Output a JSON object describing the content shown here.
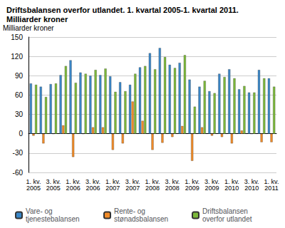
{
  "chart_data": {
    "type": "bar",
    "title": "Driftsbalansen overfor utlandet. 1. kvartal 2005-1. kvartal 2011. Milliarder kroner",
    "y_label": "Milliarder kroner",
    "categories": [
      "1. kv. 2005",
      null,
      "3. kv. 2005",
      null,
      "1. kv. 2006",
      null,
      "3. kv. 2006",
      null,
      "1. kv. 2007",
      null,
      "3. kv. 2007",
      null,
      "1. kv. 2008",
      null,
      "3. kv. 2008",
      null,
      "1. kv. 2009",
      null,
      "3. kv. 2009",
      null,
      "1. kv. 2010",
      null,
      "3. kv. 2010",
      null,
      "1. kv. 2011"
    ],
    "series": [
      {
        "name": "Vare- og tjenestebalansen",
        "color": "#3a87c8",
        "values": [
          78,
          73,
          77,
          91,
          114,
          95,
          90,
          91,
          89,
          80,
          76,
          103,
          125,
          133,
          107,
          110,
          84,
          73,
          66,
          93,
          100,
          69,
          64,
          99,
          86
        ]
      },
      {
        "name": "Rente- og stønadsbalansen",
        "color": "#f28c28",
        "values": [
          -3,
          -15,
          0,
          13,
          -36,
          0,
          10,
          10,
          -25,
          -15,
          50,
          20,
          -25,
          -14,
          -5,
          12,
          -42,
          10,
          -3,
          -5,
          -15,
          5,
          0,
          -13,
          -13
        ]
      },
      {
        "name": "Driftsbalansen overfor utlandet",
        "color": "#7cb93a",
        "values": [
          76,
          57,
          78,
          105,
          79,
          93,
          99,
          101,
          65,
          66,
          93,
          105,
          100,
          119,
          102,
          122,
          42,
          82,
          63,
          88,
          86,
          74,
          64,
          86,
          73
        ]
      }
    ],
    "ylim": [
      -60,
      150
    ],
    "yticks": [
      -60,
      -30,
      0,
      30,
      60,
      90,
      120,
      150
    ],
    "grid": true,
    "legend": "bottom"
  }
}
